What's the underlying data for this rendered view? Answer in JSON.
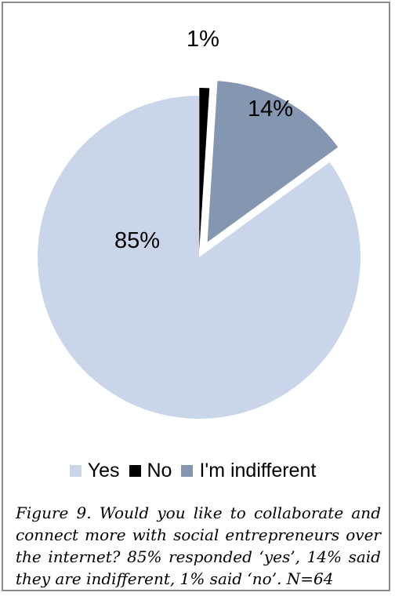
{
  "chart_data": {
    "type": "pie",
    "slices": [
      {
        "label": "Yes",
        "value": 85,
        "data_label": "85%",
        "color": "#c9d6ea"
      },
      {
        "label": "No",
        "value": 1,
        "data_label": "1%",
        "color": "#000000"
      },
      {
        "label": "I'm indifferent",
        "value": 14,
        "data_label": "14%",
        "color": "#8496b0"
      }
    ],
    "exploded": true,
    "legend_placement": "bottom"
  },
  "caption": "Figure 9. Would you like to collaborate and connect more with social entrepreneurs over the internet? 85% responded ‘yes’, 14% said they are indifferent, 1% said ‘no’. N=64"
}
